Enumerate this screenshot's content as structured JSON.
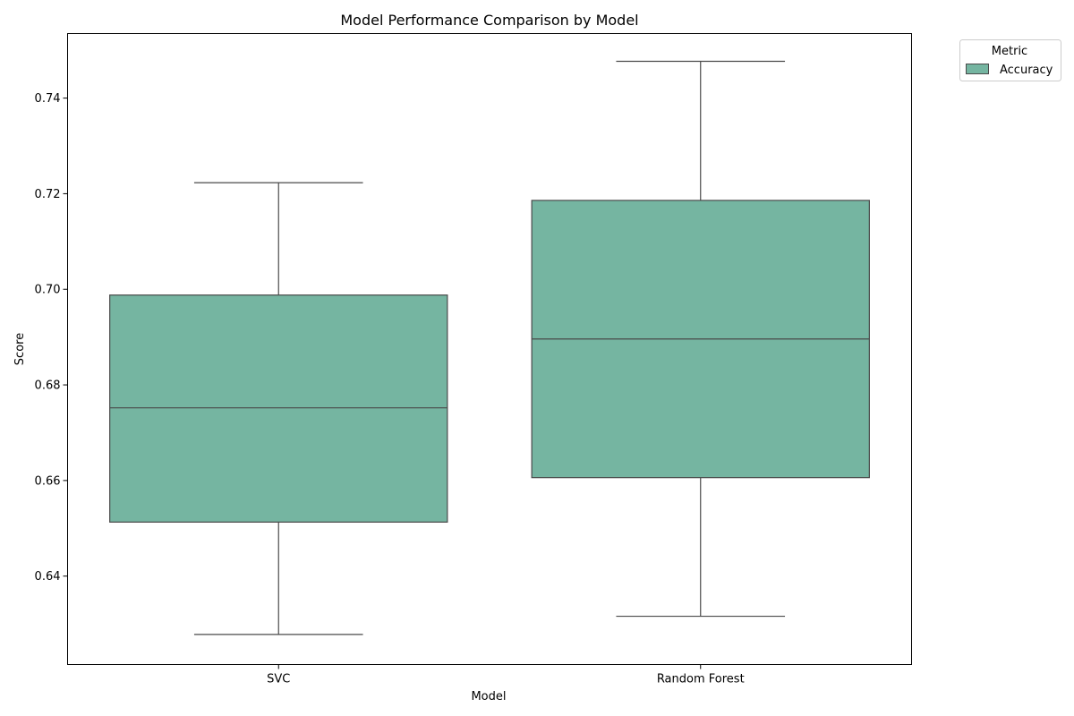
{
  "chart_data": {
    "type": "box",
    "title": "Model Performance Comparison by Model",
    "xlabel": "Model",
    "ylabel": "Score",
    "categories": [
      "SVC",
      "Random Forest"
    ],
    "ylim": [
      0.6215,
      0.7535
    ],
    "yticks": [
      0.64,
      0.66,
      0.68,
      0.7,
      0.72,
      0.74
    ],
    "ytick_labels": [
      "0.64",
      "0.66",
      "0.68",
      "0.70",
      "0.72",
      "0.74"
    ],
    "grid": false,
    "legend": {
      "title": "Metric",
      "placement": "top-right outside",
      "entries": [
        {
          "label": "Accuracy",
          "color": "#75b5a1"
        }
      ]
    },
    "series": [
      {
        "name": "Accuracy",
        "color": "#75b5a1",
        "boxes": [
          {
            "category": "SVC",
            "min": 0.6278,
            "q1": 0.6513,
            "median": 0.6752,
            "q3": 0.6988,
            "max": 0.7223
          },
          {
            "category": "Random Forest",
            "min": 0.6316,
            "q1": 0.6606,
            "median": 0.6896,
            "q3": 0.7186,
            "max": 0.7477
          }
        ]
      }
    ]
  }
}
